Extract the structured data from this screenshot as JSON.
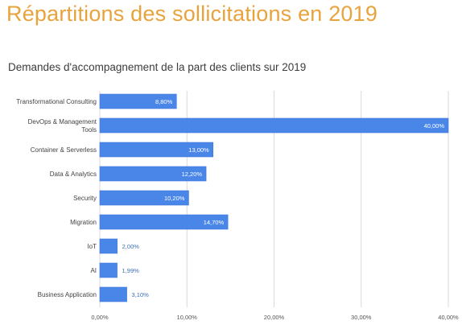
{
  "header": {
    "title": "Répartitions des sollicitations en 2019"
  },
  "chart_data": {
    "type": "bar",
    "orientation": "horizontal",
    "title": "Demandes d'accompagnement de la part des clients sur 2019",
    "categories": [
      [
        "Transformational Consulting"
      ],
      [
        "DevOps & Management",
        "Tools"
      ],
      [
        "Container & Serverless"
      ],
      [
        "Data & Analytics"
      ],
      [
        "Security"
      ],
      [
        "Migration"
      ],
      [
        "IoT"
      ],
      [
        "AI"
      ],
      [
        "Business Application"
      ]
    ],
    "values": [
      8.8,
      40.0,
      13.0,
      12.2,
      10.2,
      14.7,
      2.0,
      1.99,
      3.1
    ],
    "value_labels": [
      "8,80%",
      "40,00%",
      "13,00%",
      "12,20%",
      "10,20%",
      "14,70%",
      "2,00%",
      "1,99%",
      "3,10%"
    ],
    "xlim": [
      0,
      40
    ],
    "ticks": [
      0,
      10,
      20,
      30,
      40
    ],
    "tick_labels": [
      "0,00%",
      "10,00%",
      "20,00%",
      "30,00%",
      "40,00%"
    ],
    "grid": true,
    "legend": "none",
    "colors": {
      "bar": "#4a86e8",
      "bar_border": "#3d78d8",
      "grid": "#d9d9d9",
      "label_inside": "#ffffff",
      "label_outside": "#3d6fb6",
      "title_accent": "#e8a33c"
    }
  }
}
